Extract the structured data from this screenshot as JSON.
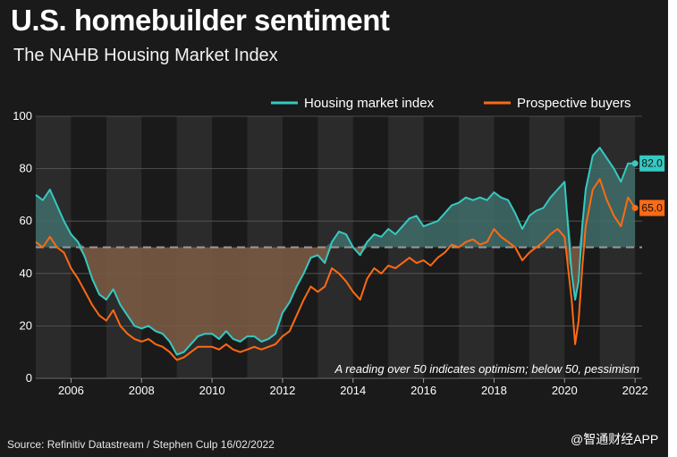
{
  "title": "U.S. homebuilder sentiment",
  "subtitle": "The NAHB Housing Market Index",
  "source": "Source: Refinitiv Datastream / Stephen Culp 16/02/2022",
  "watermark": "@智通财经APP",
  "colors": {
    "background": "#1a1a1a",
    "band": "#2b2b2b",
    "hmi": "#35c9c1",
    "buyers": "#ff6a13",
    "above_fill": "#3f6d68",
    "below_fill": "#7a5a42",
    "reference": "#9a9a9a"
  },
  "chart_data": {
    "type": "line",
    "title": "U.S. homebuilder sentiment",
    "subtitle": "The NAHB Housing Market Index",
    "xlim": [
      2005.0,
      2022.2
    ],
    "ylim": [
      0,
      100
    ],
    "yticks": [
      0,
      20,
      40,
      60,
      80,
      100
    ],
    "xticks": [
      2006,
      2008,
      2010,
      2012,
      2014,
      2016,
      2018,
      2020,
      2022
    ],
    "reference_line": 50,
    "annotation": "A reading over 50 indicates optimism; below 50, pessimism",
    "legend": {
      "position": "top-right",
      "entries": [
        "Housing market index",
        "Prospective buyers"
      ]
    },
    "series": [
      {
        "name": "Housing market index",
        "color": "#35c9c1",
        "end_label": "82.0",
        "x": [
          2005.0,
          2005.2,
          2005.4,
          2005.6,
          2005.8,
          2006.0,
          2006.2,
          2006.4,
          2006.6,
          2006.8,
          2007.0,
          2007.2,
          2007.4,
          2007.6,
          2007.8,
          2008.0,
          2008.2,
          2008.4,
          2008.6,
          2008.8,
          2009.0,
          2009.2,
          2009.4,
          2009.6,
          2009.8,
          2010.0,
          2010.2,
          2010.4,
          2010.6,
          2010.8,
          2011.0,
          2011.2,
          2011.4,
          2011.6,
          2011.8,
          2012.0,
          2012.2,
          2012.4,
          2012.6,
          2012.8,
          2013.0,
          2013.2,
          2013.4,
          2013.6,
          2013.8,
          2014.0,
          2014.2,
          2014.4,
          2014.6,
          2014.8,
          2015.0,
          2015.2,
          2015.4,
          2015.6,
          2015.8,
          2016.0,
          2016.2,
          2016.4,
          2016.6,
          2016.8,
          2017.0,
          2017.2,
          2017.4,
          2017.6,
          2017.8,
          2018.0,
          2018.2,
          2018.4,
          2018.6,
          2018.8,
          2019.0,
          2019.2,
          2019.4,
          2019.6,
          2019.8,
          2020.0,
          2020.2,
          2020.3,
          2020.4,
          2020.5,
          2020.6,
          2020.8,
          2021.0,
          2021.2,
          2021.4,
          2021.6,
          2021.8,
          2022.0
        ],
        "values": [
          70,
          68,
          72,
          66,
          60,
          55,
          52,
          46,
          38,
          32,
          30,
          34,
          28,
          24,
          20,
          19,
          20,
          18,
          17,
          14,
          9,
          10,
          13,
          16,
          17,
          17,
          15,
          18,
          15,
          14,
          16,
          16,
          14,
          15,
          17,
          25,
          29,
          35,
          40,
          46,
          47,
          44,
          52,
          56,
          55,
          50,
          47,
          52,
          55,
          54,
          57,
          55,
          58,
          61,
          62,
          58,
          59,
          60,
          63,
          66,
          67,
          69,
          68,
          69,
          68,
          71,
          69,
          68,
          63,
          57,
          62,
          64,
          65,
          69,
          72,
          75,
          40,
          30,
          37,
          58,
          72,
          85,
          88,
          84,
          80,
          75,
          82,
          82
        ]
      },
      {
        "name": "Prospective buyers",
        "color": "#ff6a13",
        "end_label": "65.0",
        "x": [
          2005.0,
          2005.2,
          2005.4,
          2005.6,
          2005.8,
          2006.0,
          2006.2,
          2006.4,
          2006.6,
          2006.8,
          2007.0,
          2007.2,
          2007.4,
          2007.6,
          2007.8,
          2008.0,
          2008.2,
          2008.4,
          2008.6,
          2008.8,
          2009.0,
          2009.2,
          2009.4,
          2009.6,
          2009.8,
          2010.0,
          2010.2,
          2010.4,
          2010.6,
          2010.8,
          2011.0,
          2011.2,
          2011.4,
          2011.6,
          2011.8,
          2012.0,
          2012.2,
          2012.4,
          2012.6,
          2012.8,
          2013.0,
          2013.2,
          2013.4,
          2013.6,
          2013.8,
          2014.0,
          2014.2,
          2014.4,
          2014.6,
          2014.8,
          2015.0,
          2015.2,
          2015.4,
          2015.6,
          2015.8,
          2016.0,
          2016.2,
          2016.4,
          2016.6,
          2016.8,
          2017.0,
          2017.2,
          2017.4,
          2017.6,
          2017.8,
          2018.0,
          2018.2,
          2018.4,
          2018.6,
          2018.8,
          2019.0,
          2019.2,
          2019.4,
          2019.6,
          2019.8,
          2020.0,
          2020.2,
          2020.3,
          2020.4,
          2020.5,
          2020.6,
          2020.8,
          2021.0,
          2021.2,
          2021.4,
          2021.6,
          2021.8,
          2022.0
        ],
        "values": [
          52,
          50,
          54,
          50,
          48,
          42,
          38,
          33,
          28,
          24,
          22,
          26,
          20,
          17,
          15,
          14,
          15,
          13,
          12,
          10,
          7,
          8,
          10,
          12,
          12,
          12,
          11,
          13,
          11,
          10,
          11,
          12,
          11,
          12,
          13,
          16,
          18,
          24,
          30,
          35,
          33,
          35,
          42,
          40,
          37,
          33,
          30,
          38,
          42,
          40,
          43,
          42,
          44,
          46,
          44,
          45,
          43,
          46,
          48,
          51,
          50,
          52,
          53,
          51,
          52,
          57,
          54,
          52,
          50,
          45,
          48,
          50,
          52,
          55,
          57,
          54,
          30,
          13,
          22,
          42,
          58,
          72,
          76,
          68,
          62,
          58,
          69,
          65
        ]
      }
    ]
  }
}
